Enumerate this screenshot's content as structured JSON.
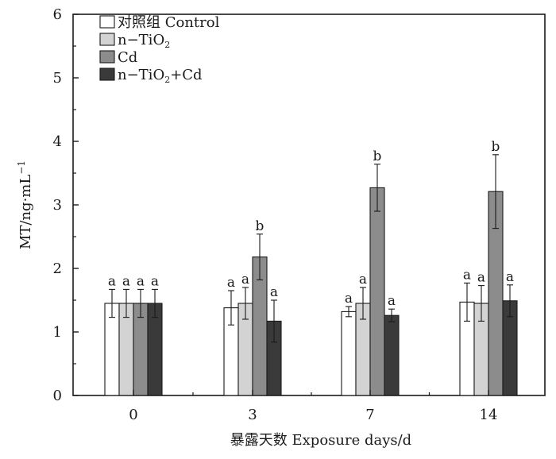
{
  "chart_data": {
    "type": "bar",
    "categories": [
      "0",
      "3",
      "7",
      "14"
    ],
    "xlabel": "暴露天数 Exposure days/d",
    "ylabel": "MT/ng·mL",
    "ylabel_superscript": "−1",
    "ylim": [
      0,
      6
    ],
    "yticks": [
      "0",
      "1",
      "2",
      "3",
      "4",
      "5",
      "6"
    ],
    "grid": false,
    "legend_position": "top-left",
    "series": [
      {
        "name": "对照组 Control",
        "color": "#ffffff",
        "values": [
          1.45,
          1.38,
          1.32,
          1.47
        ],
        "errors": [
          0.22,
          0.27,
          0.08,
          0.3
        ],
        "letters": [
          "a",
          "a",
          "a",
          "a"
        ]
      },
      {
        "name": "n−TiO",
        "name_subscript": "2",
        "color": "#d3d3d3",
        "values": [
          1.45,
          1.45,
          1.45,
          1.45
        ],
        "errors": [
          0.22,
          0.25,
          0.25,
          0.28
        ],
        "letters": [
          "a",
          "a",
          "a",
          "a"
        ]
      },
      {
        "name": "Cd",
        "color": "#8c8c8c",
        "values": [
          1.45,
          2.18,
          3.27,
          3.21
        ],
        "errors": [
          0.22,
          0.36,
          0.37,
          0.58
        ],
        "letters": [
          "a",
          "b",
          "b",
          "b"
        ]
      },
      {
        "name": "n−TiO",
        "name_subscript": "2",
        "name_suffix": "+Cd",
        "color": "#3a3a3a",
        "values": [
          1.45,
          1.17,
          1.26,
          1.49
        ],
        "errors": [
          0.22,
          0.33,
          0.1,
          0.25
        ],
        "letters": [
          "a",
          "a",
          "a",
          "a"
        ]
      }
    ]
  }
}
